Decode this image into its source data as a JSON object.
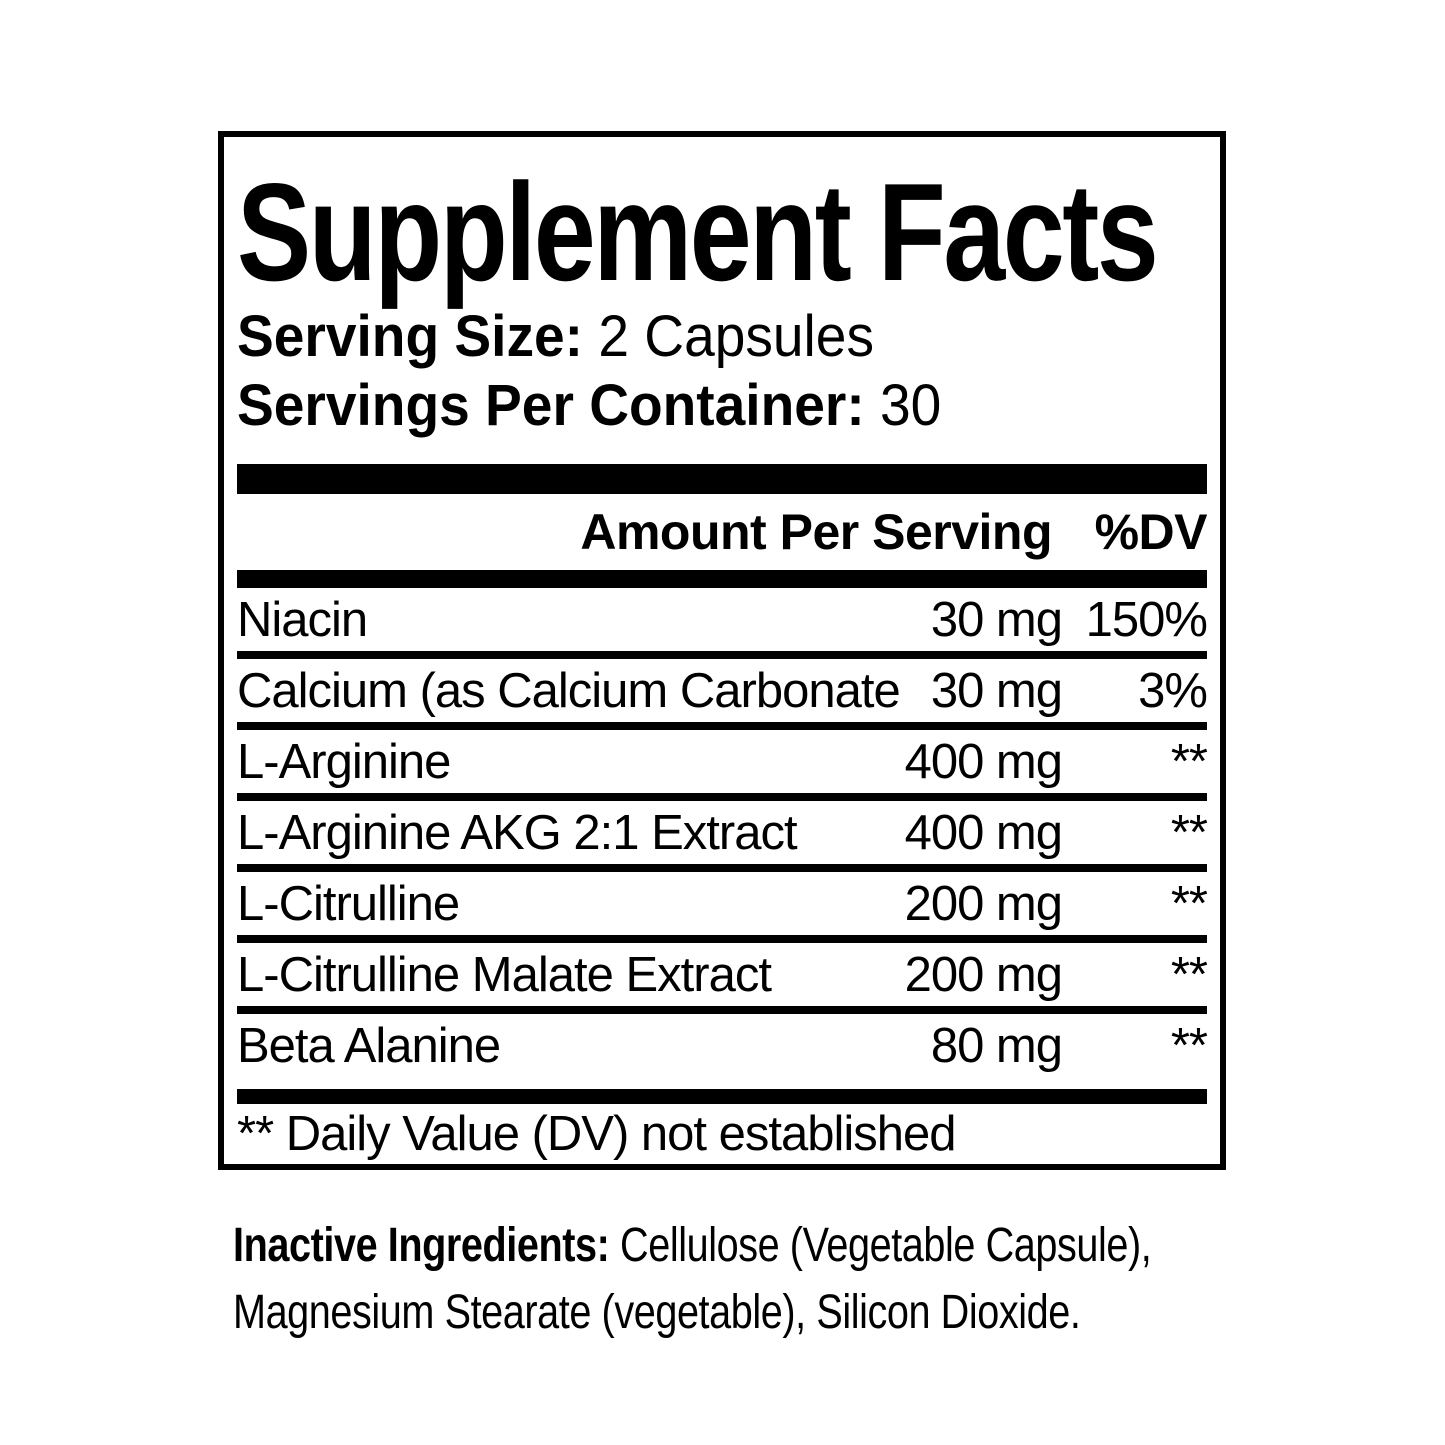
{
  "label": {
    "title": "Supplement Facts",
    "serving_size_label": "Serving Size:",
    "serving_size_value": "2 Capsules",
    "servings_per_container_label": "Servings Per Container:",
    "servings_per_container_value": "30",
    "columns": {
      "amount_header": "Amount Per Serving",
      "dv_header": "%DV"
    },
    "rows": [
      {
        "name": "Niacin",
        "amount": "30 mg",
        "dv": "150%"
      },
      {
        "name": "Calcium (as Calcium Carbonate",
        "amount": "30 mg",
        "dv": "3%"
      },
      {
        "name": "L-Arginine",
        "amount": "400 mg",
        "dv": "**"
      },
      {
        "name": "L-Arginine AKG 2:1 Extract",
        "amount": "400 mg",
        "dv": "**"
      },
      {
        "name": "L-Citrulline",
        "amount": "200 mg",
        "dv": "**"
      },
      {
        "name": "L-Citrulline Malate Extract",
        "amount": "200 mg",
        "dv": "**"
      },
      {
        "name": "Beta Alanine",
        "amount": "80 mg",
        "dv": "**"
      }
    ],
    "footnote": "** Daily Value (DV) not established"
  },
  "inactive": {
    "label": "Inactive Ingredients:",
    "line1": "Cellulose (Vegetable Capsule),",
    "line2": "Magnesium Stearate (vegetable), Silicon Dioxide."
  },
  "colors": {
    "text": "#000000",
    "background": "#ffffff"
  }
}
